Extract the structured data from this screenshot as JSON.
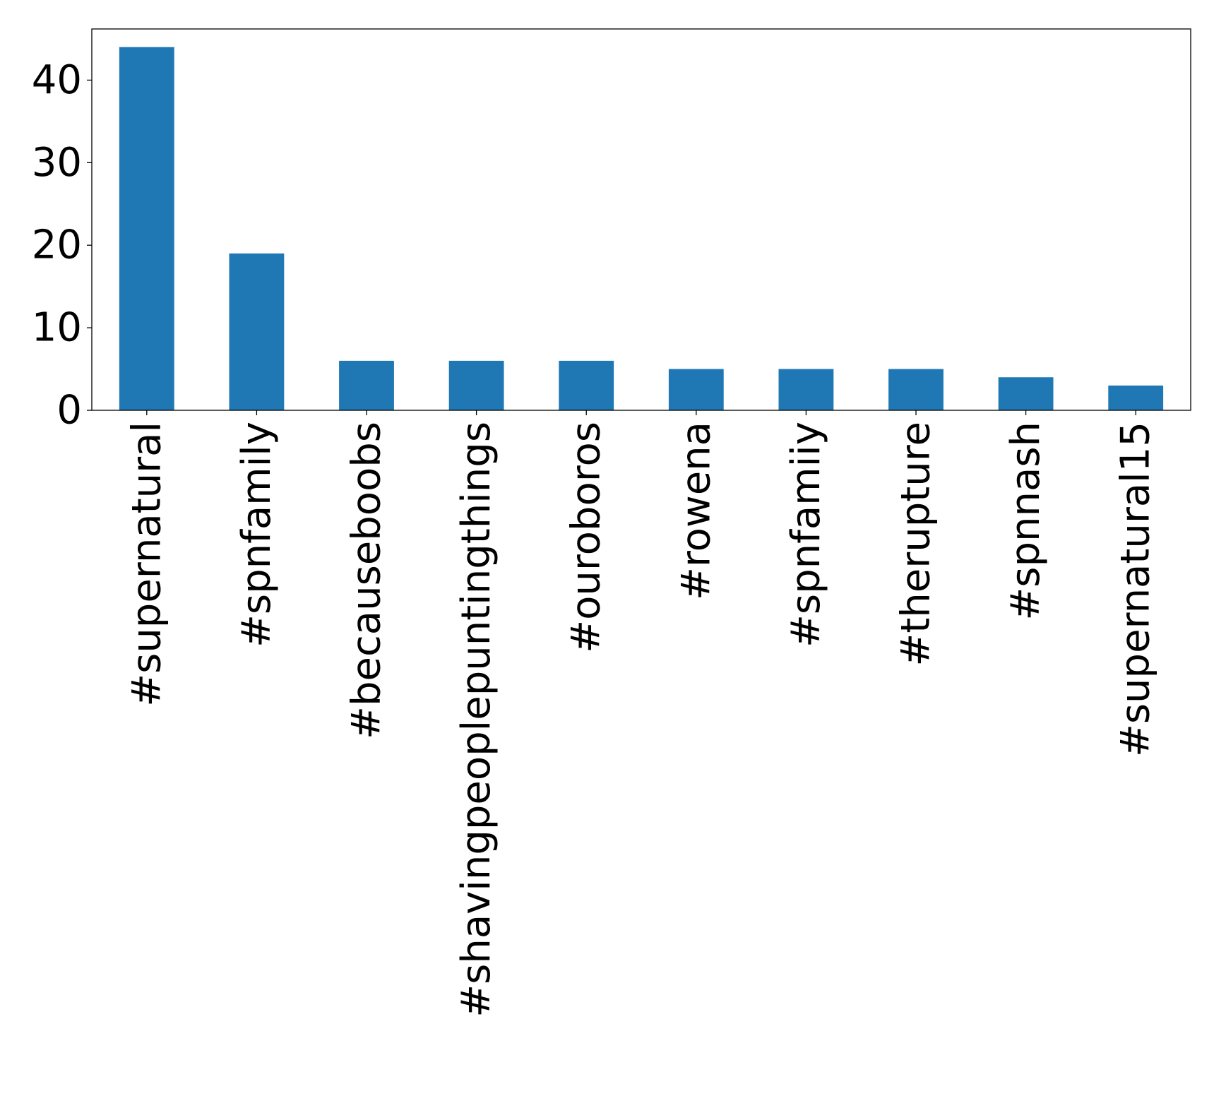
{
  "chart_data": {
    "type": "bar",
    "categories": [
      "#supernatural",
      "#spnfamily",
      "#becauseboobs",
      "#shavingpeoplepuntingthings",
      "#ouroboros",
      "#rowena",
      "#spnfamiiy",
      "#therupture",
      "#spnnash",
      "#supernatural15"
    ],
    "values": [
      44,
      19,
      6,
      6,
      6,
      5,
      5,
      5,
      4,
      3
    ],
    "title": "",
    "xlabel": "",
    "ylabel": "",
    "ylim": [
      0,
      46.2
    ],
    "yticks": [
      0,
      10,
      20,
      30,
      40
    ],
    "ytick_labels": [
      "0",
      "10",
      "20",
      "30",
      "40"
    ],
    "grid": false,
    "legend": "none",
    "bar_color": "#1f77b4",
    "x_label_rotation": "vertical"
  }
}
